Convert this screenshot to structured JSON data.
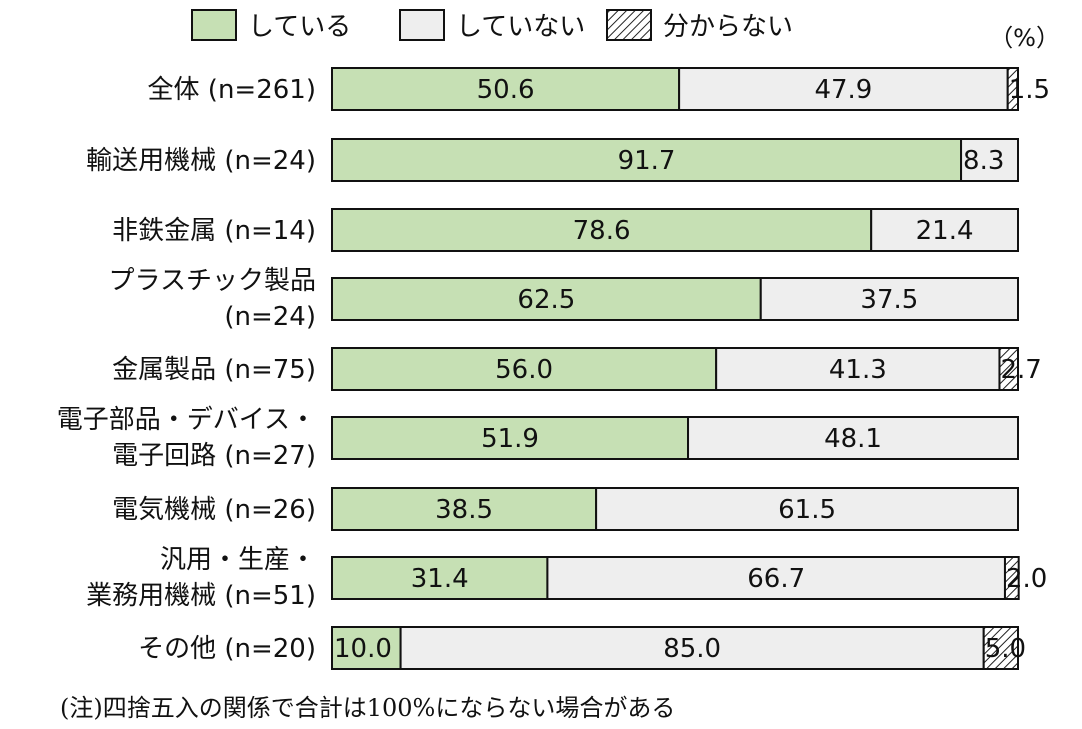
{
  "chart_data": {
    "type": "bar",
    "orientation": "horizontal",
    "stacked": true,
    "unit": "（%）",
    "legend": {
      "placement": "top"
    },
    "categories": [
      [
        "全体 (n=261)"
      ],
      [
        "輸送用機械 (n=24)"
      ],
      [
        "非鉄金属 (n=14)"
      ],
      [
        "プラスチック製品",
        "(n=24)"
      ],
      [
        "金属製品 (n=75)"
      ],
      [
        "電子部品・デバイス・",
        "電子回路 (n=27)"
      ],
      [
        "電気機械 (n=26)"
      ],
      [
        "汎用・生産・",
        "業務用機械 (n=51)"
      ],
      [
        "その他 (n=20)"
      ]
    ],
    "series": [
      {
        "name": "している",
        "color": "#c6e0b4",
        "pattern": "solid",
        "values": [
          50.6,
          91.7,
          78.6,
          62.5,
          56.0,
          51.9,
          38.5,
          31.4,
          10.0
        ]
      },
      {
        "name": "していない",
        "color": "#eeeeee",
        "pattern": "solid",
        "values": [
          47.9,
          8.3,
          21.4,
          37.5,
          41.3,
          48.1,
          61.5,
          66.7,
          85.0
        ]
      },
      {
        "name": "分からない",
        "color": "#ffffff",
        "pattern": "hatch",
        "values": [
          1.5,
          0,
          0,
          0,
          2.7,
          0,
          0,
          2.0,
          5.0
        ]
      }
    ],
    "xlim": [
      0,
      100
    ],
    "grid": false,
    "note": "(注)四捨五入の関係で合計は100%にならない場合がある"
  }
}
